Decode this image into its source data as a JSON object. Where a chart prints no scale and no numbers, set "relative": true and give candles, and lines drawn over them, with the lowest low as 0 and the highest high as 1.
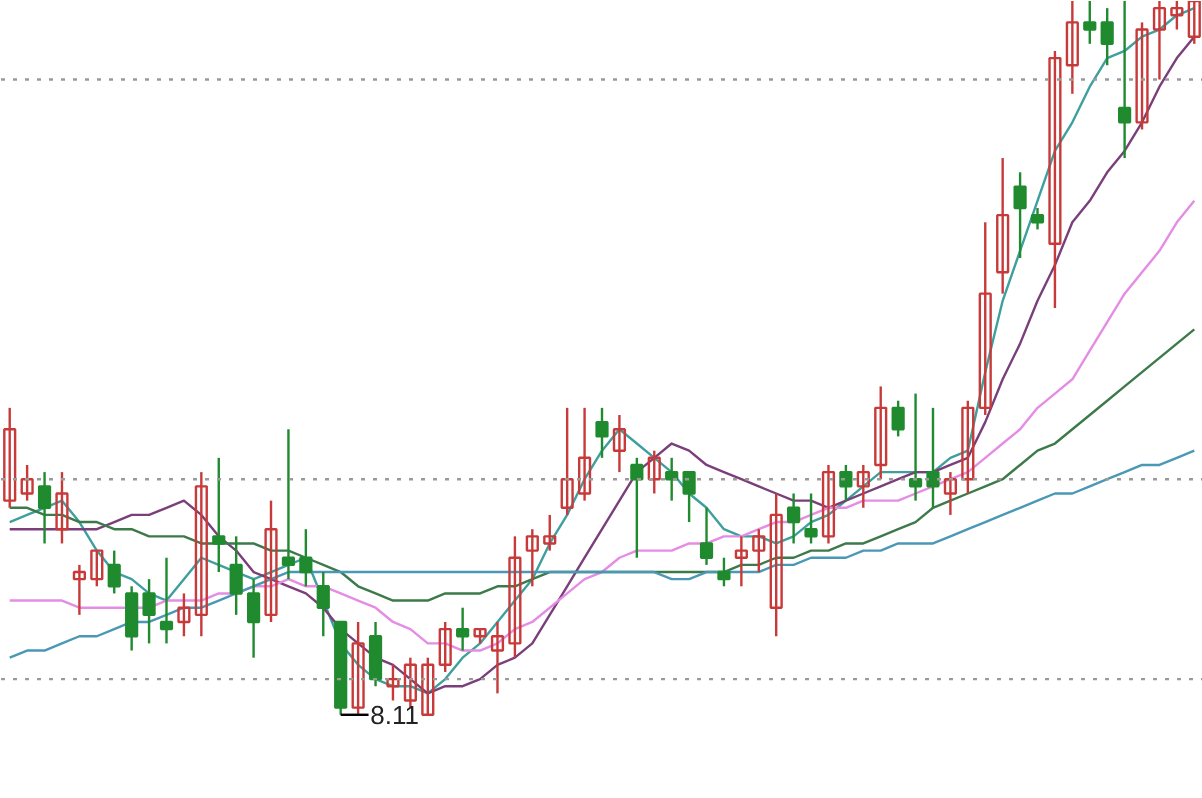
{
  "chart_data": {
    "type": "candlestick",
    "relative": true,
    "categories": [
      null,
      null,
      null,
      null,
      null,
      null,
      null,
      null,
      null,
      null,
      null,
      null,
      null,
      null,
      null,
      null,
      null,
      null,
      null,
      null,
      null,
      null,
      null,
      null,
      null,
      null,
      null,
      null,
      null,
      null,
      null,
      null,
      null,
      null,
      null,
      null,
      null,
      null,
      null,
      null,
      null,
      null,
      null,
      null,
      null,
      null,
      null,
      null,
      null,
      null,
      null,
      null,
      null,
      null,
      null,
      null,
      null,
      null,
      null,
      null,
      null,
      null,
      null,
      null,
      null,
      null,
      null,
      null,
      null
    ],
    "ohlc": [
      [
        0.3,
        0.43,
        0.29,
        0.4
      ],
      [
        0.31,
        0.35,
        0.3,
        0.33
      ],
      [
        0.32,
        0.34,
        0.24,
        0.29
      ],
      [
        0.26,
        0.34,
        0.24,
        0.31
      ],
      [
        0.19,
        0.21,
        0.14,
        0.2
      ],
      [
        0.19,
        0.23,
        0.18,
        0.23
      ],
      [
        0.21,
        0.23,
        0.17,
        0.18
      ],
      [
        0.17,
        0.18,
        0.09,
        0.11
      ],
      [
        0.17,
        0.19,
        0.1,
        0.14
      ],
      [
        0.13,
        0.22,
        0.1,
        0.12
      ],
      [
        0.13,
        0.17,
        0.11,
        0.15
      ],
      [
        0.14,
        0.34,
        0.11,
        0.32
      ],
      [
        0.25,
        0.36,
        0.2,
        0.24
      ],
      [
        0.21,
        0.25,
        0.14,
        0.17
      ],
      [
        0.17,
        0.19,
        0.08,
        0.13
      ],
      [
        0.14,
        0.3,
        0.13,
        0.26
      ],
      [
        0.22,
        0.4,
        0.19,
        0.21
      ],
      [
        0.22,
        0.26,
        0.18,
        0.2
      ],
      [
        0.18,
        0.2,
        0.11,
        0.15
      ],
      [
        0.13,
        0.13,
        0.0,
        0.01
      ],
      [
        0.01,
        0.13,
        0.0,
        0.1
      ],
      [
        0.11,
        0.13,
        0.04,
        0.05
      ],
      [
        0.04,
        0.07,
        0.02,
        0.05
      ],
      [
        0.02,
        0.08,
        0.01,
        0.07
      ],
      [
        0.0,
        0.08,
        0.0,
        0.07
      ],
      [
        0.07,
        0.13,
        0.06,
        0.12
      ],
      [
        0.12,
        0.15,
        0.09,
        0.11
      ],
      [
        0.11,
        0.12,
        0.1,
        0.12
      ],
      [
        0.09,
        0.13,
        0.03,
        0.11
      ],
      [
        0.1,
        0.25,
        0.08,
        0.22
      ],
      [
        0.23,
        0.26,
        0.18,
        0.25
      ],
      [
        0.24,
        0.28,
        0.23,
        0.25
      ],
      [
        0.29,
        0.43,
        0.28,
        0.33
      ],
      [
        0.31,
        0.43,
        0.3,
        0.36
      ],
      [
        0.41,
        0.43,
        0.36,
        0.39
      ],
      [
        0.37,
        0.42,
        0.34,
        0.4
      ],
      [
        0.35,
        0.36,
        0.22,
        0.33
      ],
      [
        0.33,
        0.37,
        0.31,
        0.36
      ],
      [
        0.34,
        0.36,
        0.3,
        0.33
      ],
      [
        0.34,
        0.34,
        0.27,
        0.31
      ],
      [
        0.24,
        0.29,
        0.21,
        0.22
      ],
      [
        0.2,
        0.22,
        0.18,
        0.19
      ],
      [
        0.22,
        0.25,
        0.18,
        0.23
      ],
      [
        0.23,
        0.26,
        0.2,
        0.25
      ],
      [
        0.15,
        0.31,
        0.11,
        0.28
      ],
      [
        0.29,
        0.31,
        0.24,
        0.27
      ],
      [
        0.26,
        0.31,
        0.24,
        0.25
      ],
      [
        0.25,
        0.35,
        0.24,
        0.34
      ],
      [
        0.34,
        0.35,
        0.3,
        0.32
      ],
      [
        0.32,
        0.35,
        0.29,
        0.34
      ],
      [
        0.35,
        0.46,
        0.33,
        0.43
      ],
      [
        0.43,
        0.44,
        0.39,
        0.4
      ],
      [
        0.33,
        0.45,
        0.3,
        0.32
      ],
      [
        0.34,
        0.43,
        0.29,
        0.32
      ],
      [
        0.31,
        0.34,
        0.28,
        0.33
      ],
      [
        0.33,
        0.44,
        0.31,
        0.43
      ],
      [
        0.43,
        0.69,
        0.42,
        0.59
      ],
      [
        0.62,
        0.78,
        0.59,
        0.7
      ],
      [
        0.74,
        0.76,
        0.64,
        0.71
      ],
      [
        0.7,
        0.71,
        0.68,
        0.69
      ],
      [
        0.66,
        0.93,
        0.57,
        0.92
      ],
      [
        0.91,
        1.0,
        0.87,
        0.97
      ],
      [
        0.97,
        1.0,
        0.94,
        0.96
      ],
      [
        0.97,
        0.99,
        0.91,
        0.94
      ],
      [
        0.85,
        1.0,
        0.78,
        0.83
      ],
      [
        0.83,
        0.97,
        0.82,
        0.96
      ],
      [
        0.96,
        1.0,
        0.89,
        0.99
      ],
      [
        0.98,
        1.0,
        0.96,
        0.99
      ],
      [
        0.95,
        1.0,
        0.94,
        1.0
      ]
    ],
    "colors": [
      "#c83a3a",
      "#c83a3a",
      "#1f8a2e",
      "#c83a3a",
      "#c83a3a",
      "#c83a3a",
      "#1f8a2e",
      "#1f8a2e",
      "#1f8a2e",
      "#1f8a2e",
      "#c83a3a",
      "#c83a3a",
      "#1f8a2e",
      "#1f8a2e",
      "#1f8a2e",
      "#c83a3a",
      "#1f8a2e",
      "#1f8a2e",
      "#1f8a2e",
      "#1f8a2e",
      "#c83a3a",
      "#1f8a2e",
      "#c83a3a",
      "#c83a3a",
      "#c83a3a",
      "#c83a3a",
      "#1f8a2e",
      "#c83a3a",
      "#c83a3a",
      "#c83a3a",
      "#c83a3a",
      "#c83a3a",
      "#c83a3a",
      "#c83a3a",
      "#1f8a2e",
      "#c83a3a",
      "#1f8a2e",
      "#c83a3a",
      "#1f8a2e",
      "#1f8a2e",
      "#1f8a2e",
      "#1f8a2e",
      "#c83a3a",
      "#c83a3a",
      "#c83a3a",
      "#1f8a2e",
      "#1f8a2e",
      "#c83a3a",
      "#1f8a2e",
      "#c83a3a",
      "#c83a3a",
      "#1f8a2e",
      "#1f8a2e",
      "#1f8a2e",
      "#c83a3a",
      "#c83a3a",
      "#c83a3a",
      "#c83a3a",
      "#1f8a2e",
      "#1f8a2e",
      "#c83a3a",
      "#c83a3a",
      "#1f8a2e",
      "#1f8a2e",
      "#1f8a2e",
      "#c83a3a",
      "#c83a3a",
      "#c83a3a",
      "#c83a3a"
    ],
    "series": [
      {
        "type": "line",
        "color": "#3f9f9f",
        "values": [
          0.27,
          0.28,
          0.29,
          0.3,
          0.27,
          0.23,
          0.2,
          0.19,
          0.17,
          0.16,
          0.19,
          0.22,
          0.21,
          0.2,
          0.19,
          0.2,
          0.21,
          0.22,
          0.16,
          0.1,
          0.07,
          0.05,
          0.04,
          0.04,
          0.03,
          0.05,
          0.08,
          0.1,
          0.13,
          0.16,
          0.19,
          0.24,
          0.28,
          0.33,
          0.37,
          0.4,
          0.38,
          0.36,
          0.34,
          0.31,
          0.29,
          0.26,
          0.25,
          0.25,
          0.24,
          0.25,
          0.27,
          0.28,
          0.3,
          0.32,
          0.34,
          0.34,
          0.34,
          0.34,
          0.36,
          0.37,
          0.48,
          0.58,
          0.65,
          0.72,
          0.79,
          0.83,
          0.88,
          0.92,
          0.93,
          0.95,
          0.96,
          0.98,
          0.99
        ]
      },
      {
        "type": "line",
        "color": "#7a3f7a",
        "values": [
          0.26,
          0.26,
          0.26,
          0.26,
          0.26,
          0.26,
          0.27,
          0.28,
          0.28,
          0.29,
          0.3,
          0.28,
          0.25,
          0.23,
          0.2,
          0.19,
          0.18,
          0.17,
          0.15,
          0.12,
          0.1,
          0.08,
          0.07,
          0.05,
          0.03,
          0.04,
          0.04,
          0.05,
          0.07,
          0.08,
          0.1,
          0.14,
          0.18,
          0.22,
          0.26,
          0.3,
          0.34,
          0.36,
          0.38,
          0.37,
          0.35,
          0.34,
          0.33,
          0.32,
          0.31,
          0.3,
          0.3,
          0.29,
          0.3,
          0.31,
          0.32,
          0.33,
          0.34,
          0.34,
          0.35,
          0.36,
          0.41,
          0.47,
          0.52,
          0.58,
          0.63,
          0.69,
          0.72,
          0.76,
          0.79,
          0.83,
          0.88,
          0.92,
          0.95
        ]
      },
      {
        "type": "line",
        "color": "#e58ce5",
        "values": [
          0.16,
          0.16,
          0.16,
          0.16,
          0.15,
          0.15,
          0.15,
          0.15,
          0.15,
          0.16,
          0.16,
          0.16,
          0.17,
          0.17,
          0.18,
          0.18,
          0.19,
          0.18,
          0.18,
          0.17,
          0.16,
          0.15,
          0.13,
          0.12,
          0.1,
          0.1,
          0.09,
          0.09,
          0.1,
          0.12,
          0.13,
          0.15,
          0.17,
          0.19,
          0.2,
          0.22,
          0.23,
          0.23,
          0.23,
          0.24,
          0.24,
          0.25,
          0.25,
          0.26,
          0.27,
          0.27,
          0.28,
          0.29,
          0.29,
          0.3,
          0.3,
          0.3,
          0.31,
          0.32,
          0.33,
          0.34,
          0.36,
          0.38,
          0.4,
          0.43,
          0.45,
          0.47,
          0.51,
          0.55,
          0.59,
          0.62,
          0.65,
          0.69,
          0.72
        ]
      },
      {
        "type": "line",
        "color": "#3c7a4a",
        "values": [
          0.29,
          0.29,
          0.28,
          0.28,
          0.27,
          0.27,
          0.26,
          0.26,
          0.25,
          0.25,
          0.25,
          0.24,
          0.24,
          0.24,
          0.24,
          0.23,
          0.23,
          0.22,
          0.21,
          0.2,
          0.18,
          0.17,
          0.16,
          0.16,
          0.16,
          0.17,
          0.17,
          0.17,
          0.18,
          0.18,
          0.19,
          0.2,
          0.2,
          0.2,
          0.2,
          0.2,
          0.2,
          0.2,
          0.2,
          0.2,
          0.2,
          0.2,
          0.21,
          0.21,
          0.22,
          0.22,
          0.23,
          0.23,
          0.24,
          0.24,
          0.25,
          0.26,
          0.27,
          0.29,
          0.3,
          0.31,
          0.32,
          0.33,
          0.35,
          0.37,
          0.38,
          0.4,
          0.42,
          0.44,
          0.46,
          0.48,
          0.5,
          0.52,
          0.54
        ]
      },
      {
        "type": "line",
        "color": "#4a98b5",
        "values": [
          0.08,
          0.09,
          0.09,
          0.1,
          0.11,
          0.11,
          0.12,
          0.13,
          0.13,
          0.14,
          0.15,
          0.15,
          0.16,
          0.17,
          0.18,
          0.19,
          0.2,
          0.2,
          0.2,
          0.2,
          0.2,
          0.2,
          0.2,
          0.2,
          0.2,
          0.2,
          0.2,
          0.2,
          0.2,
          0.2,
          0.2,
          0.2,
          0.2,
          0.2,
          0.2,
          0.2,
          0.2,
          0.2,
          0.19,
          0.19,
          0.2,
          0.2,
          0.2,
          0.2,
          0.21,
          0.21,
          0.22,
          0.22,
          0.22,
          0.23,
          0.23,
          0.24,
          0.24,
          0.24,
          0.25,
          0.26,
          0.27,
          0.28,
          0.29,
          0.3,
          0.31,
          0.31,
          0.32,
          0.33,
          0.34,
          0.35,
          0.35,
          0.36,
          0.37
        ]
      }
    ],
    "ref_lines": [
      {
        "axis": "y",
        "value": 0.89,
        "color": "#9a9a9a",
        "line_style": "dotted"
      },
      {
        "axis": "y",
        "value": 0.33,
        "color": "#9a9a9a",
        "line_style": "dotted"
      },
      {
        "axis": "y",
        "value": 0.05,
        "color": "#9a9a9a",
        "line_style": "dotted"
      }
    ],
    "annotations": [
      "8.11"
    ]
  }
}
